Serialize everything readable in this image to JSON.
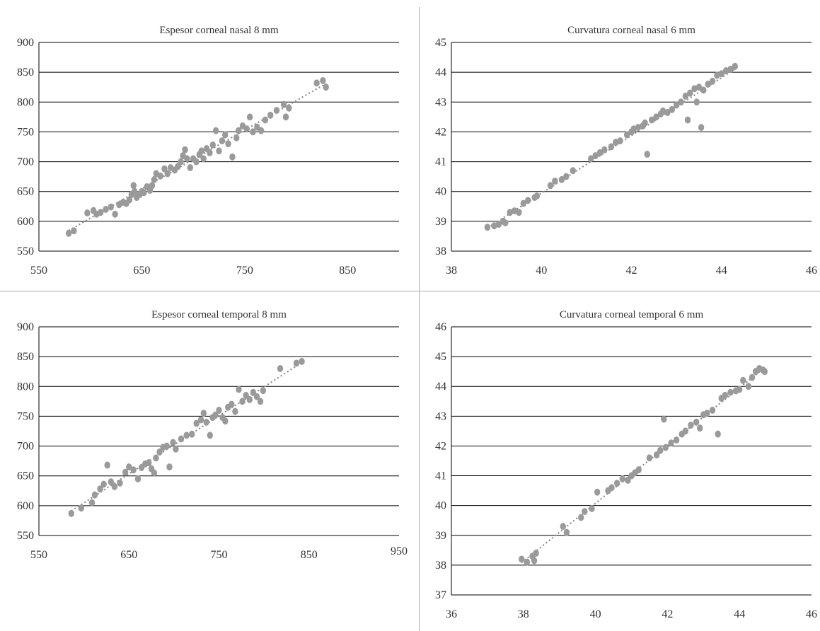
{
  "chart_data": [
    {
      "type": "scatter",
      "title": "Espesor corneal nasal 8 mm",
      "xlabel": "",
      "ylabel": "",
      "xlim": [
        550,
        900
      ],
      "ylim": [
        550,
        900
      ],
      "xticks": [
        550,
        650,
        750,
        850
      ],
      "yticks": [
        550,
        600,
        650,
        700,
        750,
        800,
        850,
        900
      ],
      "grid": "horizontal",
      "trendline": true,
      "points": [
        [
          579,
          580
        ],
        [
          584,
          584
        ],
        [
          597,
          614
        ],
        [
          603,
          618
        ],
        [
          606,
          612
        ],
        [
          610,
          615
        ],
        [
          615,
          620
        ],
        [
          620,
          624
        ],
        [
          624,
          612
        ],
        [
          628,
          628
        ],
        [
          632,
          632
        ],
        [
          635,
          630
        ],
        [
          638,
          636
        ],
        [
          640,
          645
        ],
        [
          642,
          660
        ],
        [
          643,
          650
        ],
        [
          645,
          640
        ],
        [
          648,
          645
        ],
        [
          650,
          650
        ],
        [
          652,
          648
        ],
        [
          655,
          658
        ],
        [
          658,
          652
        ],
        [
          660,
          660
        ],
        [
          662,
          670
        ],
        [
          664,
          680
        ],
        [
          668,
          676
        ],
        [
          672,
          688
        ],
        [
          675,
          680
        ],
        [
          678,
          690
        ],
        [
          682,
          686
        ],
        [
          685,
          692
        ],
        [
          688,
          700
        ],
        [
          690,
          710
        ],
        [
          692,
          720
        ],
        [
          694,
          705
        ],
        [
          697,
          690
        ],
        [
          700,
          705
        ],
        [
          703,
          700
        ],
        [
          706,
          712
        ],
        [
          708,
          718
        ],
        [
          710,
          705
        ],
        [
          713,
          722
        ],
        [
          716,
          715
        ],
        [
          719,
          728
        ],
        [
          722,
          752
        ],
        [
          725,
          718
        ],
        [
          728,
          735
        ],
        [
          731,
          745
        ],
        [
          734,
          730
        ],
        [
          738,
          708
        ],
        [
          742,
          740
        ],
        [
          744,
          752
        ],
        [
          748,
          760
        ],
        [
          752,
          755
        ],
        [
          755,
          775
        ],
        [
          758,
          750
        ],
        [
          762,
          758
        ],
        [
          766,
          752
        ],
        [
          770,
          770
        ],
        [
          775,
          778
        ],
        [
          781,
          786
        ],
        [
          788,
          796
        ],
        [
          790,
          775
        ],
        [
          793,
          790
        ],
        [
          820,
          832
        ],
        [
          826,
          836
        ],
        [
          829,
          825
        ]
      ]
    },
    {
      "type": "scatter",
      "title": "Curvatura corneal nasal 6 mm",
      "xlabel": "",
      "ylabel": "",
      "xlim": [
        38,
        46
      ],
      "ylim": [
        38,
        45
      ],
      "xticks": [
        38,
        40,
        42,
        44,
        46
      ],
      "yticks": [
        38,
        39,
        40,
        41,
        42,
        43,
        44,
        45
      ],
      "grid": "horizontal",
      "trendline": true,
      "points": [
        [
          38.8,
          38.8
        ],
        [
          38.95,
          38.85
        ],
        [
          39.05,
          38.9
        ],
        [
          39.15,
          39.0
        ],
        [
          39.2,
          38.95
        ],
        [
          39.3,
          39.3
        ],
        [
          39.4,
          39.35
        ],
        [
          39.5,
          39.3
        ],
        [
          39.6,
          39.6
        ],
        [
          39.7,
          39.7
        ],
        [
          39.85,
          39.8
        ],
        [
          39.9,
          39.85
        ],
        [
          40.2,
          40.2
        ],
        [
          40.3,
          40.35
        ],
        [
          40.45,
          40.4
        ],
        [
          40.55,
          40.5
        ],
        [
          40.7,
          40.7
        ],
        [
          41.1,
          41.1
        ],
        [
          41.2,
          41.2
        ],
        [
          41.3,
          41.3
        ],
        [
          41.4,
          41.4
        ],
        [
          41.55,
          41.5
        ],
        [
          41.65,
          41.65
        ],
        [
          41.75,
          41.7
        ],
        [
          41.9,
          41.9
        ],
        [
          42.0,
          42.0
        ],
        [
          42.05,
          42.1
        ],
        [
          42.15,
          42.15
        ],
        [
          42.25,
          42.2
        ],
        [
          42.3,
          42.3
        ],
        [
          42.35,
          41.25
        ],
        [
          42.45,
          42.4
        ],
        [
          42.55,
          42.5
        ],
        [
          42.65,
          42.6
        ],
        [
          42.7,
          42.7
        ],
        [
          42.8,
          42.65
        ],
        [
          42.9,
          42.75
        ],
        [
          43.0,
          42.9
        ],
        [
          43.1,
          43.0
        ],
        [
          43.2,
          43.2
        ],
        [
          43.25,
          42.4
        ],
        [
          43.3,
          43.3
        ],
        [
          43.4,
          43.45
        ],
        [
          43.45,
          43.0
        ],
        [
          43.5,
          43.5
        ],
        [
          43.55,
          42.15
        ],
        [
          43.6,
          43.4
        ],
        [
          43.7,
          43.6
        ],
        [
          43.8,
          43.7
        ],
        [
          43.9,
          43.9
        ],
        [
          44.0,
          43.95
        ],
        [
          44.1,
          44.05
        ],
        [
          44.2,
          44.1
        ],
        [
          44.3,
          44.2
        ]
      ]
    },
    {
      "type": "scatter",
      "title": "Espesor corneal temporal 8 mm",
      "xlabel": "",
      "ylabel": "",
      "xlim": [
        550,
        950
      ],
      "ylim": [
        550,
        900
      ],
      "xticks": [
        550,
        650,
        750,
        850,
        950
      ],
      "yticks": [
        550,
        600,
        650,
        700,
        750,
        800,
        850,
        900
      ],
      "grid": "horizontal",
      "trendline": true,
      "points": [
        [
          586,
          587
        ],
        [
          597,
          596
        ],
        [
          609,
          605
        ],
        [
          612,
          618
        ],
        [
          618,
          628
        ],
        [
          622,
          636
        ],
        [
          626,
          668
        ],
        [
          630,
          640
        ],
        [
          634,
          632
        ],
        [
          640,
          638
        ],
        [
          646,
          656
        ],
        [
          650,
          665
        ],
        [
          655,
          660
        ],
        [
          660,
          645
        ],
        [
          664,
          664
        ],
        [
          668,
          670
        ],
        [
          672,
          672
        ],
        [
          675,
          662
        ],
        [
          678,
          655
        ],
        [
          680,
          680
        ],
        [
          684,
          690
        ],
        [
          688,
          698
        ],
        [
          692,
          700
        ],
        [
          695,
          665
        ],
        [
          699,
          706
        ],
        [
          702,
          695
        ],
        [
          708,
          712
        ],
        [
          714,
          718
        ],
        [
          720,
          720
        ],
        [
          725,
          738
        ],
        [
          730,
          744
        ],
        [
          733,
          755
        ],
        [
          736,
          740
        ],
        [
          740,
          718
        ],
        [
          743,
          748
        ],
        [
          746,
          752
        ],
        [
          750,
          760
        ],
        [
          754,
          748
        ],
        [
          757,
          742
        ],
        [
          760,
          765
        ],
        [
          764,
          770
        ],
        [
          768,
          758
        ],
        [
          772,
          795
        ],
        [
          776,
          775
        ],
        [
          780,
          785
        ],
        [
          784,
          778
        ],
        [
          788,
          790
        ],
        [
          792,
          783
        ],
        [
          796,
          775
        ],
        [
          799,
          793
        ],
        [
          818,
          830
        ],
        [
          836,
          839
        ],
        [
          842,
          842
        ]
      ]
    },
    {
      "type": "scatter",
      "title": "Curvatura corneal temporal 6 mm",
      "xlabel": "",
      "ylabel": "",
      "xlim": [
        36,
        46
      ],
      "ylim": [
        37,
        46
      ],
      "xticks": [
        36,
        38,
        40,
        42,
        44,
        46
      ],
      "yticks": [
        37,
        38,
        39,
        40,
        41,
        42,
        43,
        44,
        45,
        46
      ],
      "grid": "horizontal",
      "trendline": true,
      "points": [
        [
          37.95,
          38.2
        ],
        [
          38.1,
          38.1
        ],
        [
          38.25,
          38.3
        ],
        [
          38.3,
          38.15
        ],
        [
          38.35,
          38.4
        ],
        [
          39.1,
          39.3
        ],
        [
          39.2,
          39.1
        ],
        [
          39.6,
          39.6
        ],
        [
          39.7,
          39.8
        ],
        [
          39.9,
          39.9
        ],
        [
          40.05,
          40.45
        ],
        [
          40.35,
          40.5
        ],
        [
          40.45,
          40.6
        ],
        [
          40.6,
          40.75
        ],
        [
          40.75,
          40.9
        ],
        [
          40.9,
          40.85
        ],
        [
          41.0,
          41.0
        ],
        [
          41.1,
          41.1
        ],
        [
          41.2,
          41.2
        ],
        [
          41.5,
          41.6
        ],
        [
          41.7,
          41.7
        ],
        [
          41.8,
          41.85
        ],
        [
          41.9,
          42.9
        ],
        [
          41.95,
          41.95
        ],
        [
          42.1,
          42.1
        ],
        [
          42.25,
          42.2
        ],
        [
          42.4,
          42.4
        ],
        [
          42.5,
          42.5
        ],
        [
          42.65,
          42.7
        ],
        [
          42.8,
          42.8
        ],
        [
          42.9,
          42.6
        ],
        [
          43.0,
          43.05
        ],
        [
          43.1,
          43.1
        ],
        [
          43.25,
          43.2
        ],
        [
          43.4,
          42.4
        ],
        [
          43.5,
          43.6
        ],
        [
          43.6,
          43.7
        ],
        [
          43.75,
          43.8
        ],
        [
          43.9,
          43.85
        ],
        [
          44.0,
          43.9
        ],
        [
          44.1,
          44.2
        ],
        [
          44.25,
          44.0
        ],
        [
          44.35,
          44.3
        ],
        [
          44.45,
          44.5
        ],
        [
          44.55,
          44.6
        ],
        [
          44.65,
          44.55
        ],
        [
          44.7,
          44.5
        ]
      ]
    }
  ]
}
